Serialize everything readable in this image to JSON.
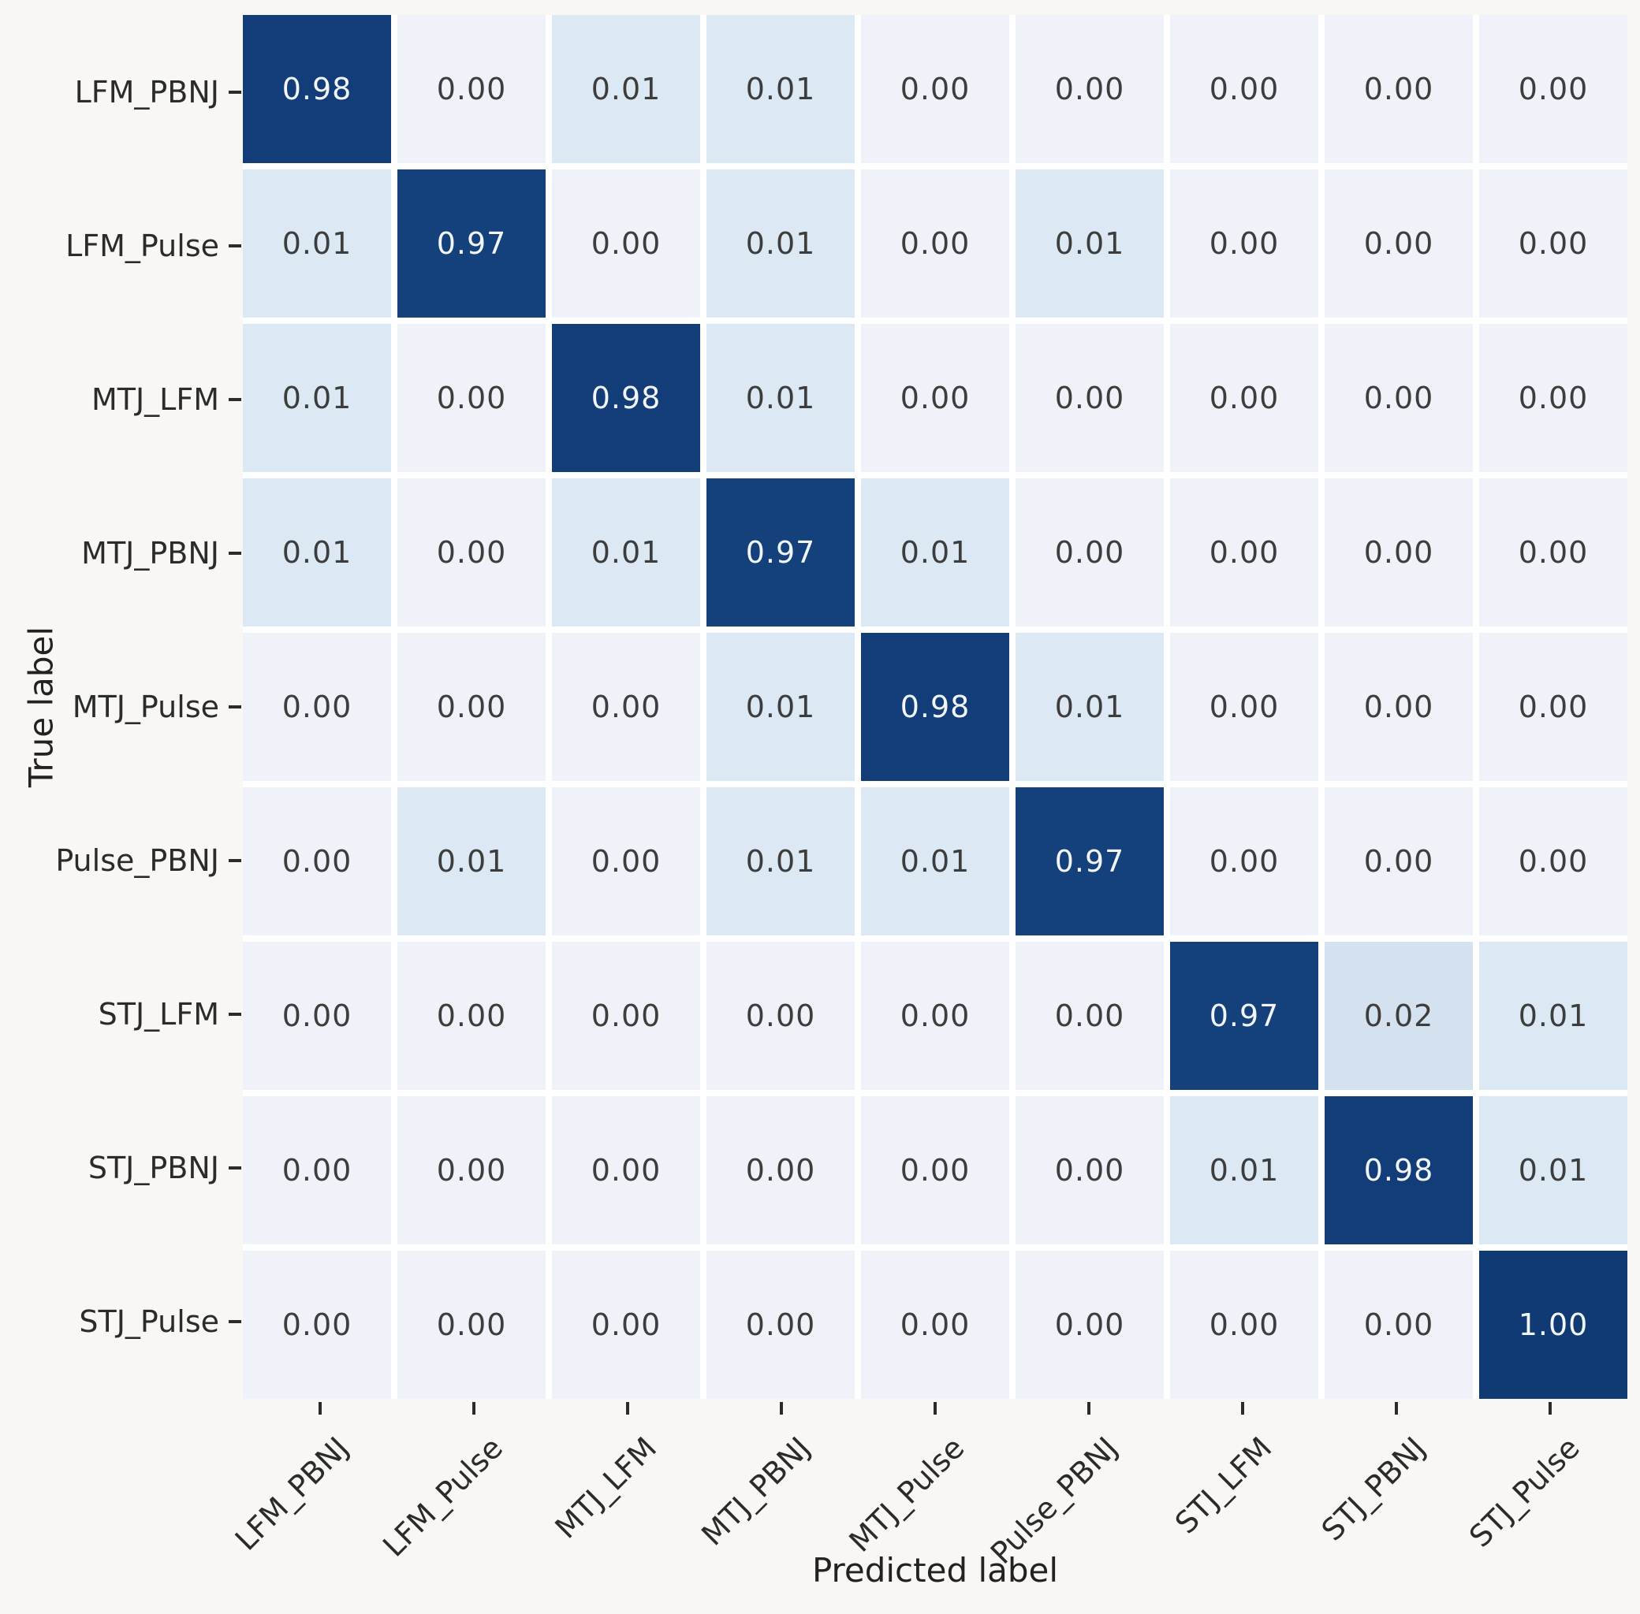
{
  "chart_data": {
    "type": "heatmap",
    "title": "",
    "xlabel": "Predicted label",
    "ylabel": "True label",
    "categories": [
      "LFM_PBNJ",
      "LFM_Pulse",
      "MTJ_LFM",
      "MTJ_PBNJ",
      "MTJ_Pulse",
      "Pulse_PBNJ",
      "STJ_LFM",
      "STJ_PBNJ",
      "STJ_Pulse"
    ],
    "rows": [
      {
        "label": "LFM_PBNJ",
        "values": [
          0.98,
          0.0,
          0.01,
          0.01,
          0.0,
          0.0,
          0.0,
          0.0,
          0.0
        ]
      },
      {
        "label": "LFM_Pulse",
        "values": [
          0.01,
          0.97,
          0.0,
          0.01,
          0.0,
          0.01,
          0.0,
          0.0,
          0.0
        ]
      },
      {
        "label": "MTJ_LFM",
        "values": [
          0.01,
          0.0,
          0.98,
          0.01,
          0.0,
          0.0,
          0.0,
          0.0,
          0.0
        ]
      },
      {
        "label": "MTJ_PBNJ",
        "values": [
          0.01,
          0.0,
          0.01,
          0.97,
          0.01,
          0.0,
          0.0,
          0.0,
          0.0
        ]
      },
      {
        "label": "MTJ_Pulse",
        "values": [
          0.0,
          0.0,
          0.0,
          0.01,
          0.98,
          0.01,
          0.0,
          0.0,
          0.0
        ]
      },
      {
        "label": "Pulse_PBNJ",
        "values": [
          0.0,
          0.01,
          0.0,
          0.01,
          0.01,
          0.97,
          0.0,
          0.0,
          0.0
        ]
      },
      {
        "label": "STJ_LFM",
        "values": [
          0.0,
          0.0,
          0.0,
          0.0,
          0.0,
          0.0,
          0.97,
          0.02,
          0.01
        ]
      },
      {
        "label": "STJ_PBNJ",
        "values": [
          0.0,
          0.0,
          0.0,
          0.0,
          0.0,
          0.0,
          0.01,
          0.98,
          0.01
        ]
      },
      {
        "label": "STJ_Pulse",
        "values": [
          0.0,
          0.0,
          0.0,
          0.0,
          0.0,
          0.0,
          0.0,
          0.0,
          1.0
        ]
      }
    ],
    "value_format": "2-decimals",
    "value_range": [
      0,
      1
    ],
    "colormap_name": "Blues",
    "cell_colors": {
      "0.00": "#eff3f9",
      "0.01": "#dce8f3",
      "0.02": "#d4e2f0",
      "0.97": "#14407c",
      "0.98": "#123d79",
      "1.00": "#0f3a74"
    },
    "dark_cell_text_color": "#f2f6fa",
    "light_cell_text_color": "#3d3d3d",
    "grid_gap_color": "#ffffff",
    "background_color": "#f8f7f4",
    "legend": "none",
    "grid": "off"
  }
}
